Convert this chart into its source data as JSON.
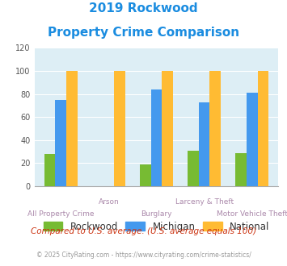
{
  "title_line1": "2019 Rockwood",
  "title_line2": "Property Crime Comparison",
  "title_color": "#1a8ce0",
  "categories": [
    "All Property Crime",
    "Arson",
    "Burglary",
    "Larceny & Theft",
    "Motor Vehicle Theft"
  ],
  "label_row1": [
    "",
    "Arson",
    "",
    "Larceny & Theft",
    ""
  ],
  "label_row2": [
    "All Property Crime",
    "",
    "Burglary",
    "",
    "Motor Vehicle Theft"
  ],
  "rockwood": [
    28,
    0,
    19,
    31,
    29
  ],
  "michigan": [
    75,
    0,
    84,
    73,
    81
  ],
  "national": [
    100,
    100,
    100,
    100,
    100
  ],
  "color_rockwood": "#77bb33",
  "color_michigan": "#4499ee",
  "color_national": "#ffbb33",
  "ylim": [
    0,
    120
  ],
  "yticks": [
    0,
    20,
    40,
    60,
    80,
    100,
    120
  ],
  "bg_color": "#ddeef5",
  "xlabel_color": "#aa88aa",
  "legend_label_color": "#333333",
  "footer_text": "Compared to U.S. average. (U.S. average equals 100)",
  "footer_color": "#cc3311",
  "credit_text": "© 2025 CityRating.com - https://www.cityrating.com/crime-statistics/",
  "credit_color": "#999999",
  "credit_link_color": "#3399cc"
}
